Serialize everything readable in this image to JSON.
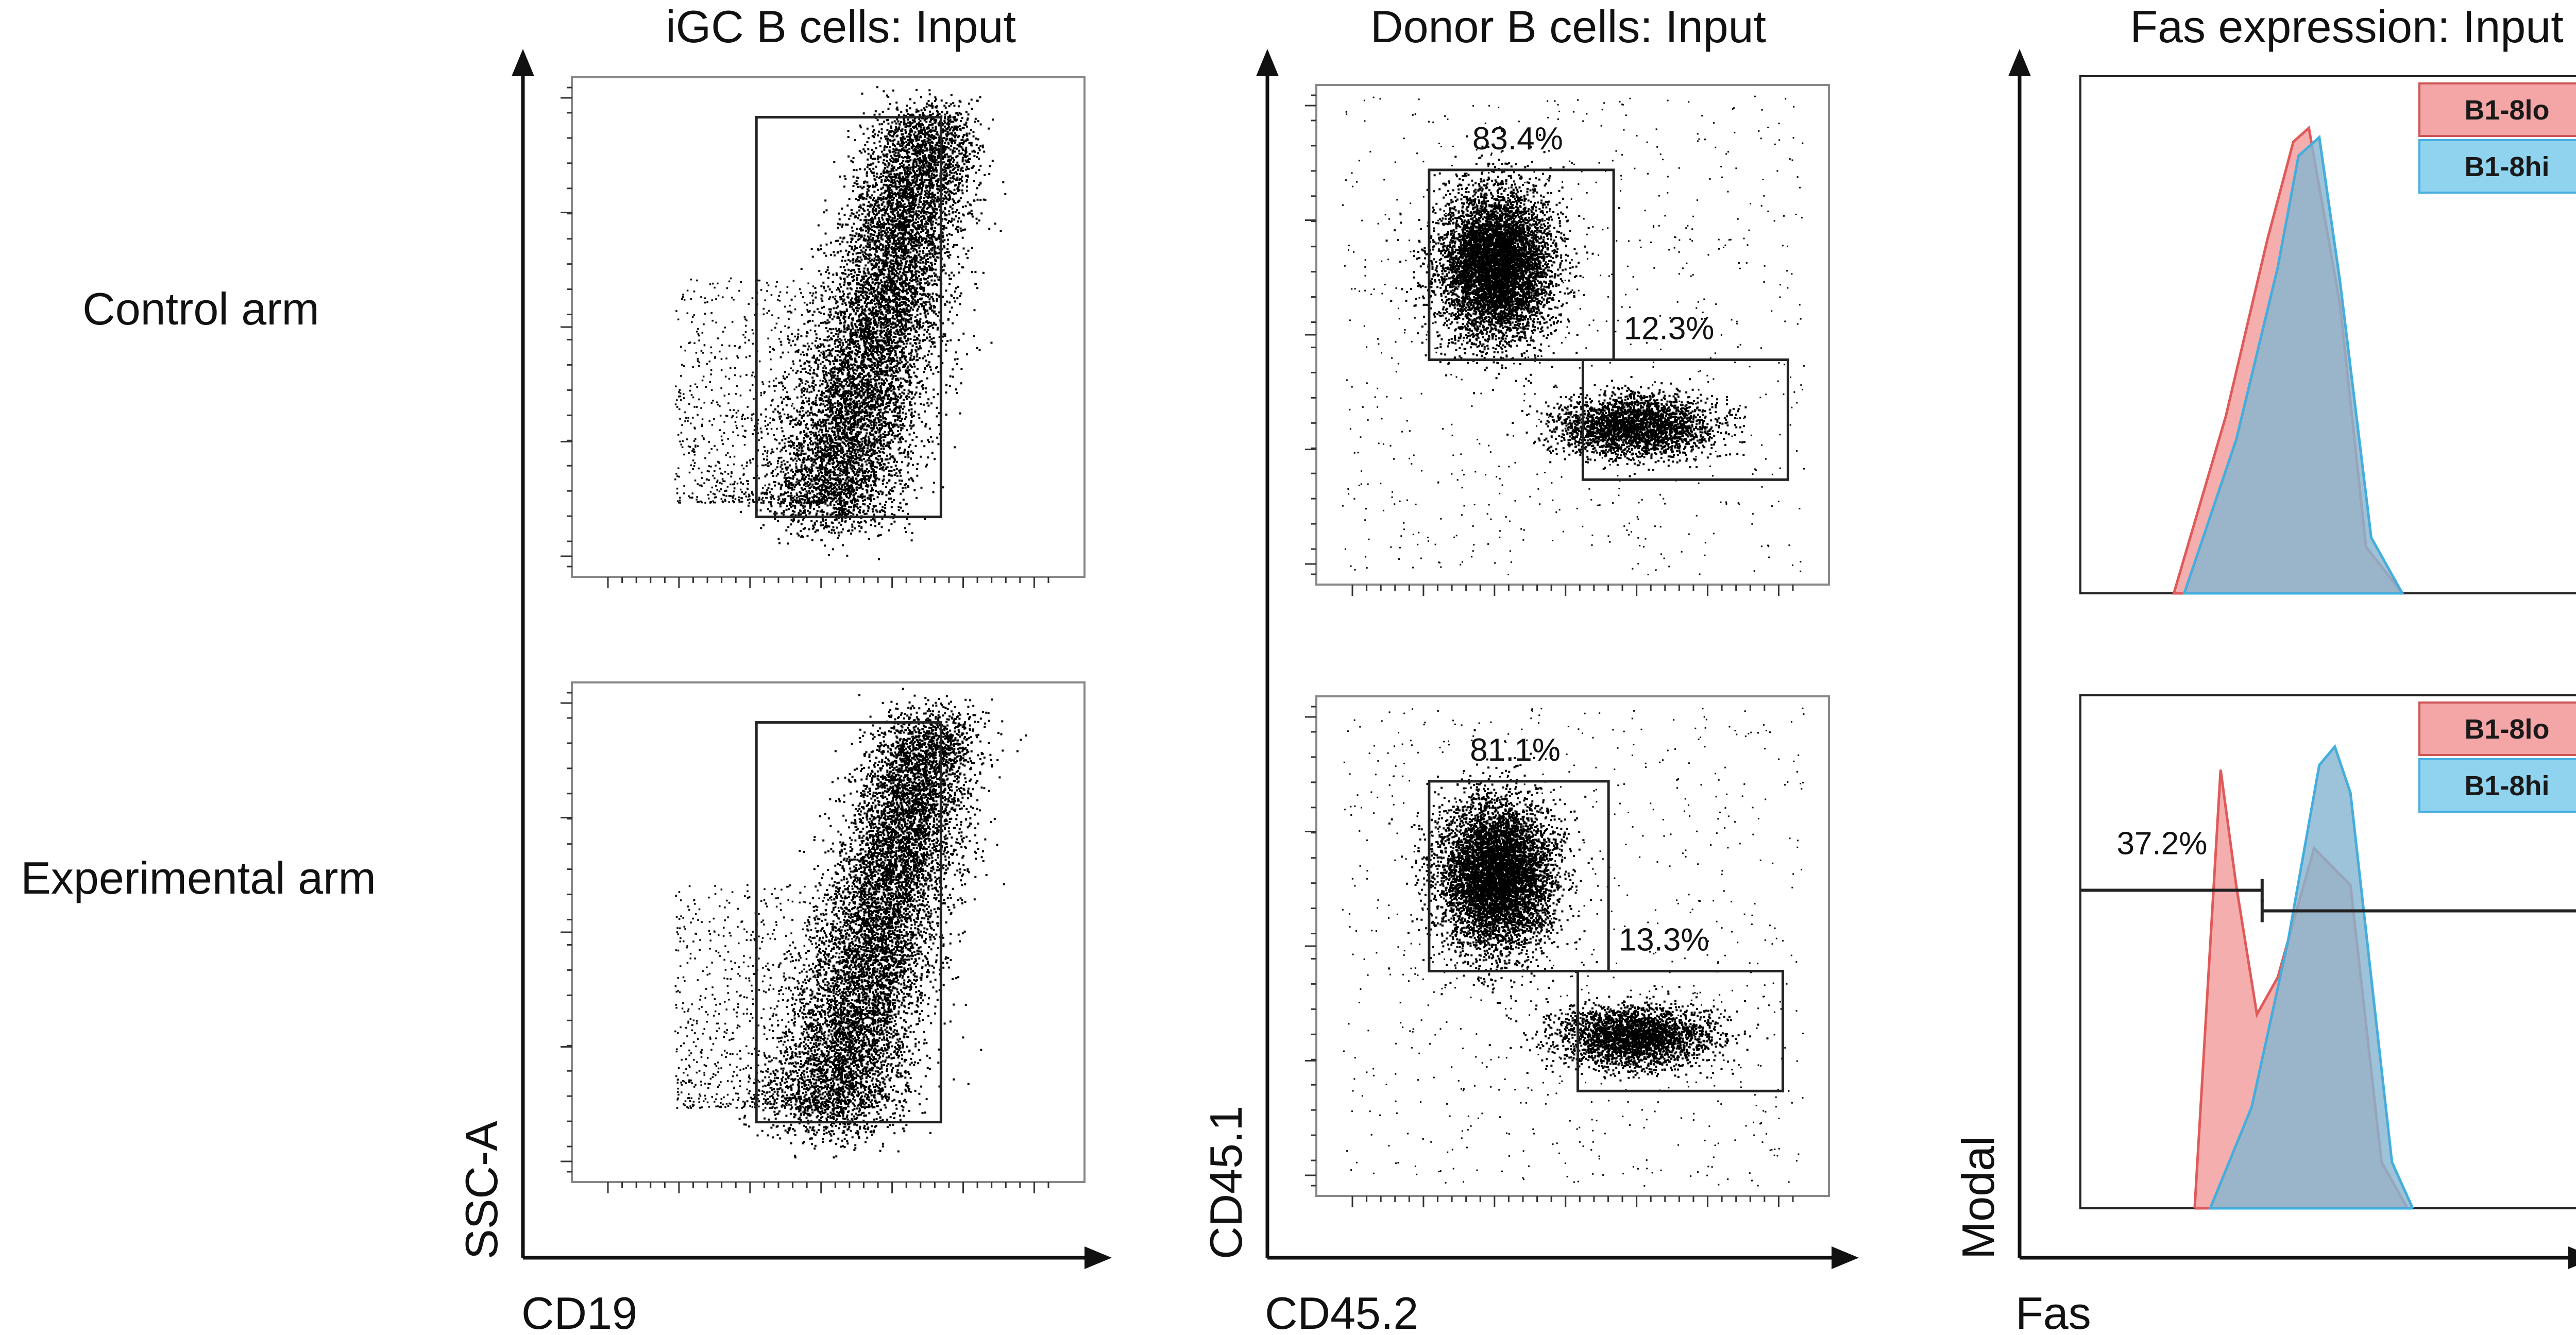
{
  "chart_data": [
    {
      "type": "scatter",
      "title": "iGC B cells: Input",
      "xlabel": "CD19",
      "ylabel": "SSC-A",
      "row_labels": [
        "Control arm",
        "Experimental arm"
      ],
      "panels": [
        {
          "row": "Control arm",
          "gates": [
            {
              "x_range": [
                0.36,
                0.72
              ],
              "y_range": [
                0.12,
                0.92
              ],
              "label": ""
            }
          ]
        },
        {
          "row": "Experimental arm",
          "gates": [
            {
              "x_range": [
                0.36,
                0.72
              ],
              "y_range": [
                0.12,
                0.92
              ],
              "label": ""
            }
          ]
        }
      ]
    },
    {
      "type": "scatter",
      "title": "Donor B cells: Input",
      "xlabel": "CD45.2",
      "ylabel": "CD45.1",
      "row_labels": [
        "Control arm",
        "Experimental arm"
      ],
      "panels": [
        {
          "row": "Control arm",
          "gates": [
            {
              "x_range": [
                0.22,
                0.58
              ],
              "y_range": [
                0.45,
                0.83
              ],
              "label": "83.4%"
            },
            {
              "x_range": [
                0.52,
                0.92
              ],
              "y_range": [
                0.21,
                0.45
              ],
              "label": "12.3%"
            }
          ]
        },
        {
          "row": "Experimental arm",
          "gates": [
            {
              "x_range": [
                0.22,
                0.57
              ],
              "y_range": [
                0.45,
                0.83
              ],
              "label": "81.1%"
            },
            {
              "x_range": [
                0.51,
                0.91
              ],
              "y_range": [
                0.21,
                0.45
              ],
              "label": "13.3%"
            }
          ]
        }
      ]
    },
    {
      "type": "area",
      "title": "Fas expression: Input",
      "xlabel": "Fas",
      "ylabel": "Modal",
      "legend": [
        "B1-8lo",
        "B1-8hi"
      ],
      "series_colors": {
        "B1-8lo": "#f4a5a5",
        "B1-8hi": "#8fd3ef"
      },
      "panels": [
        {
          "row": "Control arm",
          "series": [
            {
              "name": "B1-8lo",
              "x": [
                0.18,
                0.28,
                0.36,
                0.41,
                0.44,
                0.5,
                0.55,
                0.62
              ],
              "y": [
                0,
                0.38,
                0.76,
                0.97,
                1.0,
                0.62,
                0.1,
                0
              ]
            },
            {
              "name": "B1-8hi",
              "x": [
                0.2,
                0.3,
                0.38,
                0.42,
                0.46,
                0.5,
                0.56,
                0.62
              ],
              "y": [
                0,
                0.33,
                0.7,
                0.94,
                0.98,
                0.67,
                0.12,
                0
              ]
            }
          ]
        },
        {
          "row": "Experimental arm",
          "series": [
            {
              "name": "B1-8lo",
              "x": [
                0.22,
                0.27,
                0.3,
                0.34,
                0.38,
                0.45,
                0.52,
                0.58,
                0.63
              ],
              "y": [
                0,
                0.95,
                0.7,
                0.42,
                0.5,
                0.78,
                0.7,
                0.1,
                0
              ]
            },
            {
              "name": "B1-8hi",
              "x": [
                0.25,
                0.33,
                0.4,
                0.46,
                0.49,
                0.52,
                0.56,
                0.6,
                0.64
              ],
              "y": [
                0,
                0.22,
                0.58,
                0.96,
                1.0,
                0.9,
                0.5,
                0.1,
                0
              ]
            }
          ],
          "gates": [
            {
              "x_range": [
                0.0,
                0.35
              ],
              "label": "37.2%"
            },
            {
              "x_range": [
                0.35,
                0.98
              ],
              "label": ""
            }
          ]
        }
      ]
    }
  ]
}
